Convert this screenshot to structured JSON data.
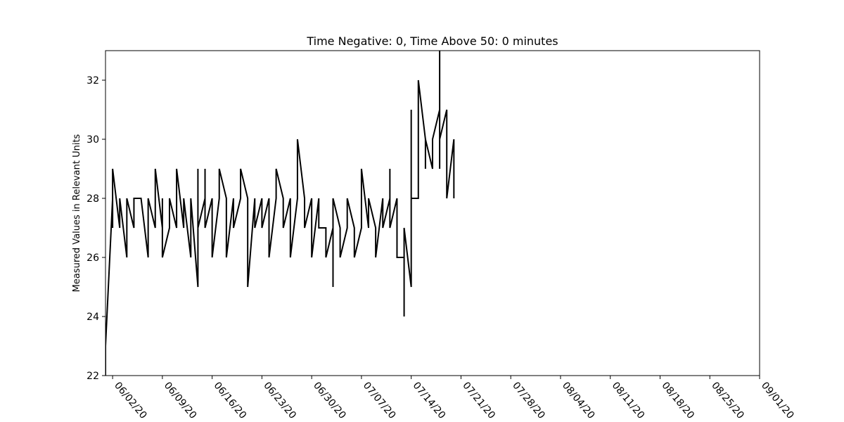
{
  "chart_data": {
    "type": "line",
    "title": "Time Negative: 0, Time Above 50: 0 minutes",
    "y_label": "Measured Values in Relevant Units",
    "x": [
      "2020-06-01",
      "2020-06-01",
      "2020-06-02",
      "2020-06-02",
      "2020-06-02",
      "2020-06-03",
      "2020-06-03",
      "2020-06-04",
      "2020-06-04",
      "2020-06-05",
      "2020-06-05",
      "2020-06-06",
      "2020-06-07",
      "2020-06-07",
      "2020-06-08",
      "2020-06-08",
      "2020-06-09",
      "2020-06-09",
      "2020-06-09",
      "2020-06-10",
      "2020-06-10",
      "2020-06-11",
      "2020-06-11",
      "2020-06-12",
      "2020-06-12",
      "2020-06-13",
      "2020-06-13",
      "2020-06-14",
      "2020-06-14",
      "2020-06-14",
      "2020-06-15",
      "2020-06-15",
      "2020-06-15",
      "2020-06-16",
      "2020-06-16",
      "2020-06-17",
      "2020-06-17",
      "2020-06-18",
      "2020-06-18",
      "2020-06-19",
      "2020-06-19",
      "2020-06-20",
      "2020-06-20",
      "2020-06-21",
      "2020-06-21",
      "2020-06-22",
      "2020-06-22",
      "2020-06-23",
      "2020-06-23",
      "2020-06-24",
      "2020-06-24",
      "2020-06-25",
      "2020-06-25",
      "2020-06-26",
      "2020-06-26",
      "2020-06-27",
      "2020-06-27",
      "2020-06-28",
      "2020-06-28",
      "2020-06-29",
      "2020-06-29",
      "2020-06-30",
      "2020-06-30",
      "2020-07-01",
      "2020-07-01",
      "2020-07-02",
      "2020-07-02",
      "2020-07-03",
      "2020-07-03",
      "2020-07-03",
      "2020-07-04",
      "2020-07-04",
      "2020-07-05",
      "2020-07-05",
      "2020-07-06",
      "2020-07-06",
      "2020-07-07",
      "2020-07-07",
      "2020-07-08",
      "2020-07-08",
      "2020-07-09",
      "2020-07-09",
      "2020-07-10",
      "2020-07-10",
      "2020-07-11",
      "2020-07-11",
      "2020-07-11",
      "2020-07-12",
      "2020-07-12",
      "2020-07-13",
      "2020-07-13",
      "2020-07-13",
      "2020-07-14",
      "2020-07-14",
      "2020-07-14",
      "2020-07-14",
      "2020-07-14",
      "2020-07-15",
      "2020-07-15",
      "2020-07-16",
      "2020-07-16",
      "2020-07-16",
      "2020-07-17",
      "2020-07-17",
      "2020-07-18",
      "2020-07-18",
      "2020-07-18",
      "2020-07-18",
      "2020-07-19",
      "2020-07-19",
      "2020-07-19",
      "2020-07-20",
      "2020-07-20",
      "2020-07-20"
    ],
    "values": [
      22,
      23,
      28,
      27,
      29,
      27,
      28,
      26,
      28,
      27,
      28,
      28,
      26,
      28,
      27,
      29,
      27,
      28,
      26,
      27,
      28,
      27,
      29,
      27,
      28,
      26,
      28,
      25,
      29,
      27,
      28,
      29,
      27,
      28,
      26,
      28,
      29,
      28,
      26,
      28,
      27,
      28,
      29,
      28,
      25,
      28,
      27,
      28,
      27,
      28,
      26,
      28,
      29,
      28,
      27,
      28,
      26,
      28,
      30,
      28,
      27,
      28,
      26,
      28,
      27,
      27,
      26,
      27,
      25,
      28,
      27,
      26,
      27,
      28,
      27,
      26,
      27,
      29,
      27,
      28,
      27,
      26,
      28,
      27,
      28,
      29,
      27,
      28,
      26,
      26,
      24,
      27,
      25,
      26,
      31,
      27,
      28,
      28,
      32,
      30,
      29,
      30,
      29,
      30,
      31,
      29,
      33,
      30,
      31,
      29,
      28,
      30,
      28,
      29
    ],
    "color": "#000000",
    "xlim": [
      "2020-06-01",
      "2020-09-01"
    ],
    "ylim": [
      22,
      33
    ],
    "xticks": [
      {
        "value": "2020-06-02",
        "label": "06/02/20"
      },
      {
        "value": "2020-06-09",
        "label": "06/09/20"
      },
      {
        "value": "2020-06-16",
        "label": "06/16/20"
      },
      {
        "value": "2020-06-23",
        "label": "06/23/20"
      },
      {
        "value": "2020-06-30",
        "label": "06/30/20"
      },
      {
        "value": "2020-07-07",
        "label": "07/07/20"
      },
      {
        "value": "2020-07-14",
        "label": "07/14/20"
      },
      {
        "value": "2020-07-21",
        "label": "07/21/20"
      },
      {
        "value": "2020-07-28",
        "label": "07/28/20"
      },
      {
        "value": "2020-08-04",
        "label": "08/04/20"
      },
      {
        "value": "2020-08-11",
        "label": "08/11/20"
      },
      {
        "value": "2020-08-18",
        "label": "08/18/20"
      },
      {
        "value": "2020-08-25",
        "label": "08/25/20"
      },
      {
        "value": "2020-09-01",
        "label": "09/01/20"
      }
    ],
    "yticks": [
      22,
      24,
      26,
      28,
      30,
      32
    ]
  }
}
